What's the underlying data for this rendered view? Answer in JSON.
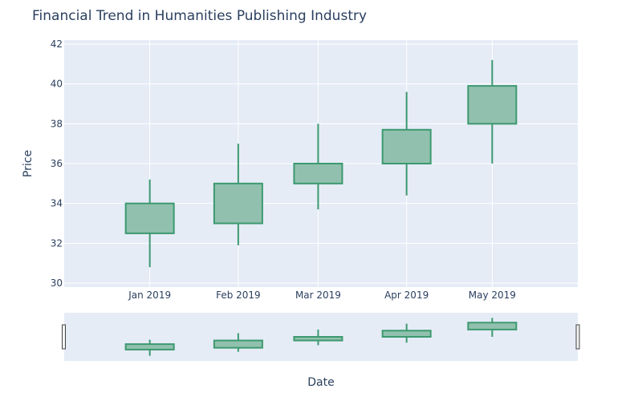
{
  "chart_data": {
    "type": "candlestick",
    "title": "Financial Trend in Humanities Publishing Industry",
    "xlabel": "Date",
    "ylabel": "Price",
    "ylim": [
      29.8,
      42.2
    ],
    "yticks": [
      30,
      32,
      34,
      36,
      38,
      40,
      42
    ],
    "categories": [
      "Jan 2019",
      "Feb 2019",
      "Mar 2019",
      "Apr 2019",
      "May 2019"
    ],
    "dates": [
      "2019-01-01",
      "2019-02-01",
      "2019-03-01",
      "2019-04-01",
      "2019-05-01"
    ],
    "open": [
      32.5,
      33.0,
      35.0,
      36.0,
      38.0
    ],
    "high": [
      35.2,
      37.0,
      38.0,
      39.6,
      41.2
    ],
    "low": [
      30.8,
      31.9,
      33.7,
      34.4,
      36.0
    ],
    "close": [
      34.0,
      35.0,
      36.0,
      37.7,
      39.9
    ],
    "increasing_color": "#3d9970",
    "increasing_fill": "#91c1ae",
    "plot_bgcolor": "#e5ecf6",
    "grid": true,
    "rangeslider": true
  }
}
